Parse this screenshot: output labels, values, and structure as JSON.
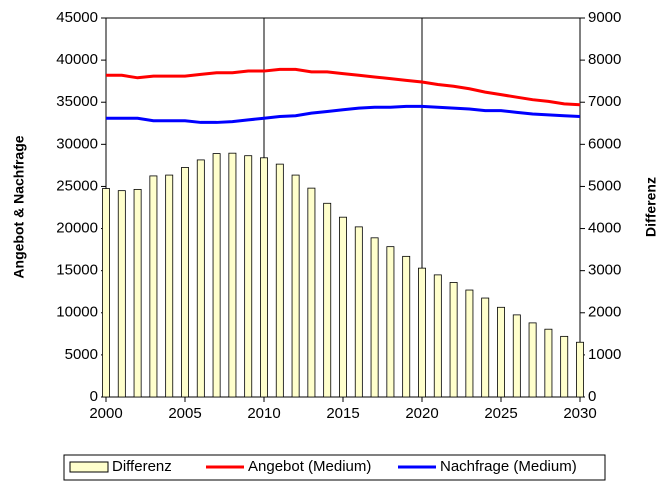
{
  "chart_data": {
    "type": "combo",
    "x": [
      2000,
      2001,
      2002,
      2003,
      2004,
      2005,
      2006,
      2007,
      2008,
      2009,
      2010,
      2011,
      2012,
      2013,
      2014,
      2015,
      2016,
      2017,
      2018,
      2019,
      2020,
      2021,
      2022,
      2023,
      2024,
      2025,
      2026,
      2027,
      2028,
      2029,
      2030
    ],
    "xlim": [
      2000,
      2030
    ],
    "xticks": [
      2000,
      2005,
      2010,
      2015,
      2020,
      2025,
      2030
    ],
    "x_gridlines": [
      2010,
      2020
    ],
    "ylim": [
      0,
      45000
    ],
    "yticks": [
      0,
      5000,
      10000,
      15000,
      20000,
      25000,
      30000,
      35000,
      40000,
      45000
    ],
    "y2lim": [
      0,
      9000
    ],
    "y2ticks": [
      0,
      1000,
      2000,
      3000,
      4000,
      5000,
      6000,
      7000,
      8000,
      9000
    ],
    "ylabel": "Angebot & Nachfrage",
    "y2label": "Differenz",
    "series": [
      {
        "name": "Differenz",
        "type": "bar",
        "axis": "y2",
        "color": "#ffffcc",
        "values": [
          4950,
          4900,
          4930,
          5250,
          5270,
          5450,
          5630,
          5780,
          5790,
          5730,
          5680,
          5530,
          5270,
          4960,
          4600,
          4270,
          4040,
          3780,
          3570,
          3340,
          3060,
          2900,
          2720,
          2540,
          2350,
          2130,
          1950,
          1760,
          1610,
          1440,
          1300
        ]
      },
      {
        "name": "Angebot (Medium)",
        "type": "line",
        "color": "#ff0000",
        "values": [
          38200,
          38200,
          37900,
          38100,
          38100,
          38100,
          38300,
          38500,
          38500,
          38700,
          38700,
          38900,
          38900,
          38600,
          38600,
          38400,
          38200,
          38000,
          37800,
          37600,
          37400,
          37100,
          36900,
          36600,
          36200,
          35900,
          35600,
          35300,
          35100,
          34800,
          34700
        ]
      },
      {
        "name": "Nachfrage (Medium)",
        "type": "line",
        "color": "#0000ff",
        "values": [
          33100,
          33100,
          33100,
          32800,
          32800,
          32800,
          32600,
          32600,
          32700,
          32900,
          33100,
          33300,
          33400,
          33700,
          33900,
          34100,
          34300,
          34400,
          34400,
          34500,
          34500,
          34400,
          34300,
          34200,
          34000,
          34000,
          33800,
          33600,
          33500,
          33400,
          33300
        ]
      }
    ]
  }
}
